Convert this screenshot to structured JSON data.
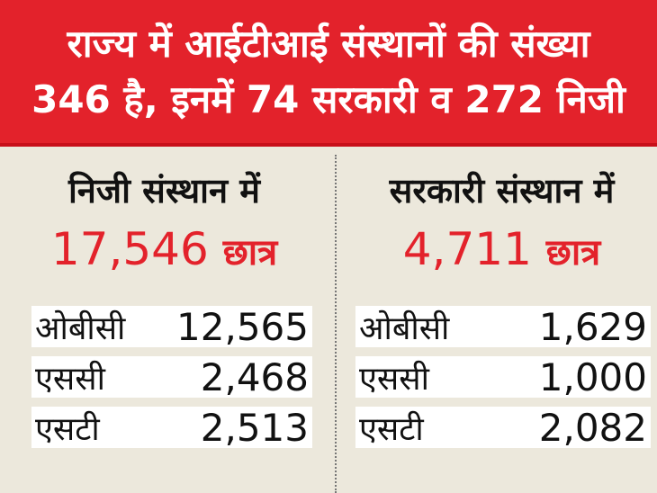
{
  "header": {
    "line1": "राज्य में आईटीआई संस्थानों की संख्या",
    "line2": "346 है, इनमें  74 सरकारी व 272 निजी"
  },
  "panels": [
    {
      "title": "निजी संस्थान में",
      "total": "17,546",
      "unit": "छात्र",
      "rows": [
        {
          "label": "ओबीसी",
          "value": "12,565"
        },
        {
          "label": "एससी",
          "value": "2,468"
        },
        {
          "label": "एसटी",
          "value": "2,513"
        }
      ]
    },
    {
      "title": "सरकारी संस्थान में",
      "total": "4,711",
      "unit": "छात्र",
      "rows": [
        {
          "label": "ओबीसी",
          "value": "1,629"
        },
        {
          "label": "एससी",
          "value": "1,000"
        },
        {
          "label": "एसटी",
          "value": "2,082"
        }
      ]
    }
  ],
  "colors": {
    "accent": "#e3222b",
    "background": "#ece8dc"
  }
}
